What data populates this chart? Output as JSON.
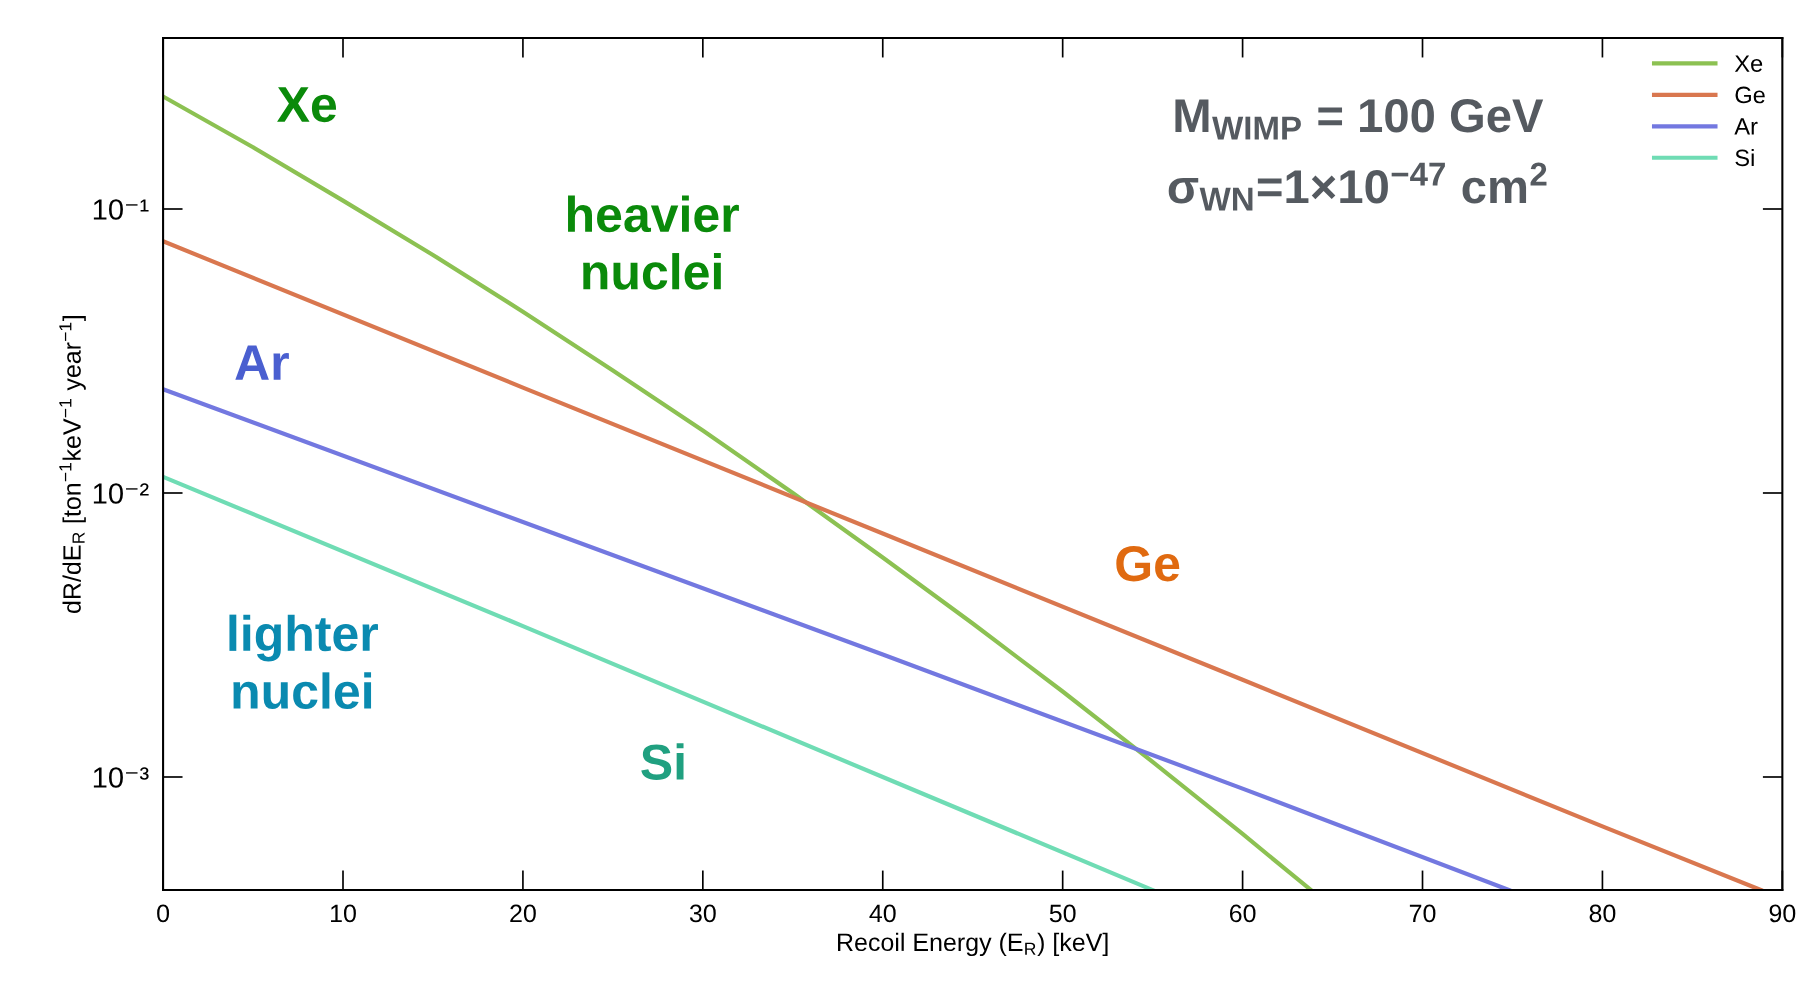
{
  "chart_data": {
    "type": "line",
    "xlabel": "Recoil Energy (E$_{R}$) [keV]",
    "ylabel": "dR/dE$_{R}$ [ton$^{−1}$keV$^{−1}$ year$^{−1}$]",
    "log": "y",
    "grid": false,
    "legend": "top right",
    "line_style": "solid",
    "marker": "none",
    "xlim": [
      0,
      90
    ],
    "xticks": [
      0,
      10,
      20,
      30,
      40,
      50,
      60,
      70,
      80,
      90
    ],
    "ylim": [
      0.0004,
      0.4
    ],
    "yticks": [
      {
        "value": 0.001,
        "label": "10⁻³"
      },
      {
        "value": 0.01,
        "label": "10⁻²"
      },
      {
        "value": 0.1,
        "label": "10⁻¹"
      }
    ],
    "series": [
      {
        "name": "Xe",
        "color": "#8cc152",
        "x": [
          0,
          5,
          10,
          15,
          20,
          25,
          30,
          35,
          40,
          45,
          50,
          55,
          60,
          63.8
        ],
        "values": [
          0.249,
          0.165,
          0.107,
          0.0689,
          0.0435,
          0.027,
          0.0166,
          0.01,
          0.00593,
          0.00347,
          0.002,
          0.00113,
          0.00063,
          0.0004
        ]
      },
      {
        "name": "Ge",
        "color": "#d9774f",
        "x": [
          0,
          20,
          40,
          60,
          80,
          88.8
        ],
        "values": [
          0.077,
          0.0235,
          0.0072,
          0.0022,
          0.00067,
          0.0004
        ]
      },
      {
        "name": "Ar",
        "color": "#7378e0",
        "x": [
          0,
          20,
          40,
          60,
          74.8
        ],
        "values": [
          0.0232,
          0.0079,
          0.0027,
          0.00091,
          0.0004
        ]
      },
      {
        "name": "Si",
        "color": "#6fdcb4",
        "x": [
          0,
          20,
          40,
          55
        ],
        "values": [
          0.0114,
          0.0034,
          0.001,
          0.0004
        ]
      }
    ],
    "annotations": [
      "Xe",
      "heavier\nnuclei",
      "Ar",
      "lighter\nnuclei",
      "Si",
      "Ge",
      "M$_{WIMP}$ = 100 GeV",
      "σ$_{WN}$=1×10$^{−47}$ cm$^{2}$"
    ]
  }
}
